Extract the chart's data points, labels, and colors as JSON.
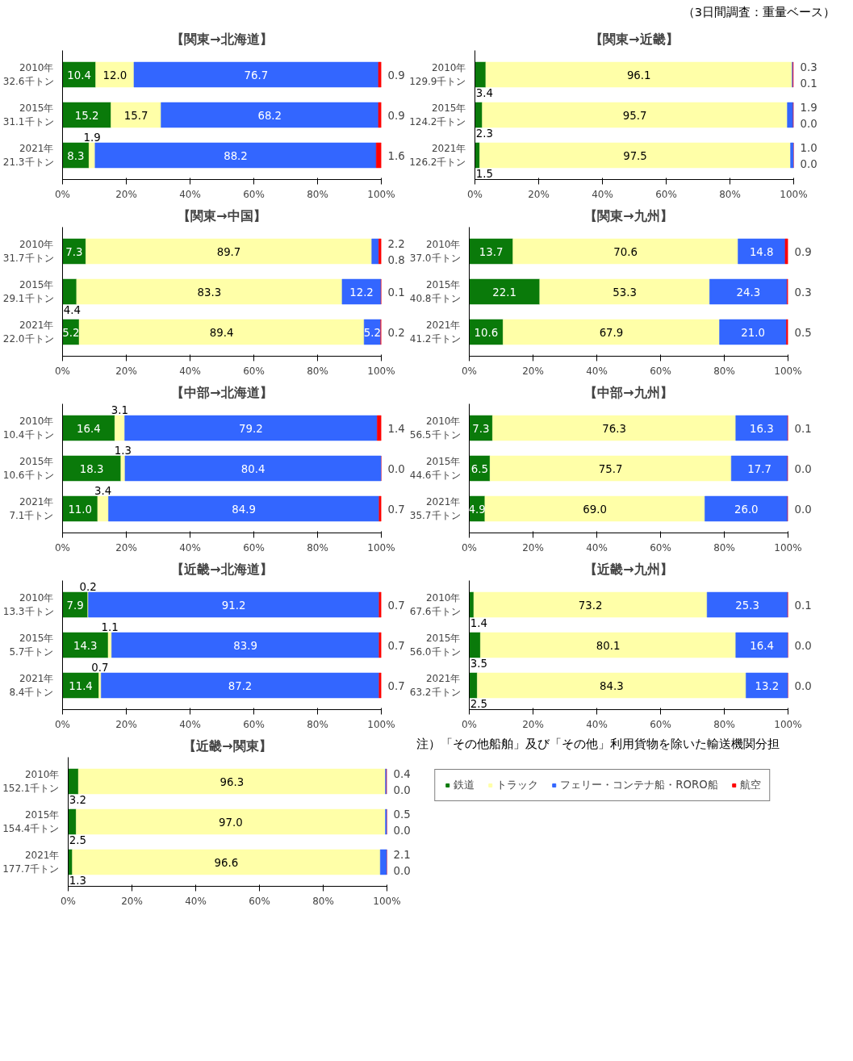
{
  "chart_data": [
    {
      "type": "bar",
      "orientation": "horizontal",
      "stacked": true,
      "title": "【関東→北海道】",
      "annotations": [
        "（3日間調査：重量ベース）"
      ],
      "categories": [
        "2010年\n32.6千トン",
        "2015年\n31.1千トン",
        "2021年\n21.3千トン"
      ],
      "xlim": [
        0,
        100
      ],
      "xticks": [
        {
          "value": 0,
          "label": "0%"
        },
        {
          "value": 20,
          "label": "20%"
        },
        {
          "value": 40,
          "label": "40%"
        },
        {
          "value": 60,
          "label": "60%"
        },
        {
          "value": 80,
          "label": "80%"
        },
        {
          "value": 100,
          "label": "100%"
        }
      ],
      "grid": false,
      "series": [
        {
          "color": "#0a7a0a",
          "values": [
            10.4,
            15.2,
            8.3
          ],
          "value_labels": [
            "10.4",
            "15.2",
            "8.3"
          ]
        },
        {
          "color": "#ffffa8",
          "values": [
            12.0,
            15.7,
            1.9
          ],
          "value_labels": [
            "12.0",
            "15.7",
            "1.9"
          ]
        },
        {
          "color": "#3366ff",
          "values": [
            76.7,
            68.2,
            88.2
          ],
          "value_labels": [
            "76.7",
            "68.2",
            "88.2"
          ]
        },
        {
          "color": "#ff0000",
          "values": [
            0.9,
            0.9,
            1.6
          ],
          "value_labels": [
            "0.9",
            "0.9",
            "1.6"
          ]
        }
      ]
    },
    {
      "type": "bar",
      "orientation": "horizontal",
      "stacked": true,
      "title": "【関東→近畿】",
      "categories": [
        "2010年\n129.9千トン",
        "2015年\n124.2千トン",
        "2021年\n126.2千トン"
      ],
      "xlim": [
        0,
        100
      ],
      "xticks": [
        {
          "value": 0,
          "label": "0%"
        },
        {
          "value": 20,
          "label": "20%"
        },
        {
          "value": 40,
          "label": "40%"
        },
        {
          "value": 60,
          "label": "60%"
        },
        {
          "value": 80,
          "label": "80%"
        },
        {
          "value": 100,
          "label": "100%"
        }
      ],
      "grid": false,
      "series": [
        {
          "color": "#0a7a0a",
          "values": [
            3.4,
            2.3,
            1.5
          ],
          "value_labels": [
            "3.4",
            "2.3",
            "1.5"
          ]
        },
        {
          "color": "#ffffa8",
          "values": [
            96.1,
            95.7,
            97.5
          ],
          "value_labels": [
            "96.1",
            "95.7",
            "97.5"
          ]
        },
        {
          "color": "#3366ff",
          "values": [
            0.3,
            1.9,
            1.0
          ],
          "value_labels": [
            "0.3",
            "1.9",
            "1.0"
          ]
        },
        {
          "color": "#ff0000",
          "values": [
            0.1,
            0.0,
            0.0
          ],
          "value_labels": [
            "0.1",
            "0.0",
            "0.0"
          ]
        }
      ]
    },
    {
      "type": "bar",
      "orientation": "horizontal",
      "stacked": true,
      "title": "【関東→中国】",
      "categories": [
        "2010年\n31.7千トン",
        "2015年\n29.1千トン",
        "2021年\n22.0千トン"
      ],
      "xlim": [
        0,
        100
      ],
      "xticks": [
        {
          "value": 0,
          "label": "0%"
        },
        {
          "value": 20,
          "label": "20%"
        },
        {
          "value": 40,
          "label": "40%"
        },
        {
          "value": 60,
          "label": "60%"
        },
        {
          "value": 80,
          "label": "80%"
        },
        {
          "value": 100,
          "label": "100%"
        }
      ],
      "grid": false,
      "series": [
        {
          "color": "#0a7a0a",
          "values": [
            7.3,
            4.4,
            5.2
          ],
          "value_labels": [
            "7.3",
            "4.4",
            "5.2"
          ]
        },
        {
          "color": "#ffffa8",
          "values": [
            89.7,
            83.3,
            89.4
          ],
          "value_labels": [
            "89.7",
            "83.3",
            "89.4"
          ]
        },
        {
          "color": "#3366ff",
          "values": [
            2.2,
            12.2,
            5.2
          ],
          "value_labels": [
            "2.2",
            "12.2",
            "5.2"
          ]
        },
        {
          "color": "#ff0000",
          "values": [
            0.8,
            0.1,
            0.2
          ],
          "value_labels": [
            "0.8",
            "0.1",
            "0.2"
          ]
        }
      ]
    },
    {
      "type": "bar",
      "orientation": "horizontal",
      "stacked": true,
      "title": "【関東→九州】",
      "categories": [
        "2010年\n37.0千トン",
        "2015年\n40.8千トン",
        "2021年\n41.2千トン"
      ],
      "xlim": [
        0,
        100
      ],
      "xticks": [
        {
          "value": 0,
          "label": "0%"
        },
        {
          "value": 20,
          "label": "20%"
        },
        {
          "value": 40,
          "label": "40%"
        },
        {
          "value": 60,
          "label": "60%"
        },
        {
          "value": 80,
          "label": "80%"
        },
        {
          "value": 100,
          "label": "100%"
        }
      ],
      "grid": false,
      "series": [
        {
          "color": "#0a7a0a",
          "values": [
            13.7,
            22.1,
            10.6
          ],
          "value_labels": [
            "13.7",
            "22.1",
            "10.6"
          ]
        },
        {
          "color": "#ffffa8",
          "values": [
            70.6,
            53.3,
            67.9
          ],
          "value_labels": [
            "70.6",
            "53.3",
            "67.9"
          ]
        },
        {
          "color": "#3366ff",
          "values": [
            14.8,
            24.3,
            21.0
          ],
          "value_labels": [
            "14.8",
            "24.3",
            "21.0"
          ]
        },
        {
          "color": "#ff0000",
          "values": [
            0.9,
            0.3,
            0.5
          ],
          "value_labels": [
            "0.9",
            "0.3",
            "0.5"
          ]
        }
      ]
    },
    {
      "type": "bar",
      "orientation": "horizontal",
      "stacked": true,
      "title": "【中部→北海道】",
      "categories": [
        "2010年\n10.4千トン",
        "2015年\n10.6千トン",
        "2021年\n7.1千トン"
      ],
      "xlim": [
        0,
        100
      ],
      "xticks": [
        {
          "value": 0,
          "label": "0%"
        },
        {
          "value": 20,
          "label": "20%"
        },
        {
          "value": 40,
          "label": "40%"
        },
        {
          "value": 60,
          "label": "60%"
        },
        {
          "value": 80,
          "label": "80%"
        },
        {
          "value": 100,
          "label": "100%"
        }
      ],
      "grid": false,
      "series": [
        {
          "color": "#0a7a0a",
          "values": [
            16.4,
            18.3,
            11.0
          ],
          "value_labels": [
            "16.4",
            "18.3",
            "11.0"
          ]
        },
        {
          "color": "#ffffa8",
          "values": [
            3.1,
            1.3,
            3.4
          ],
          "value_labels": [
            "3.1",
            "1.3",
            "3.4"
          ]
        },
        {
          "color": "#3366ff",
          "values": [
            79.2,
            80.4,
            84.9
          ],
          "value_labels": [
            "79.2",
            "80.4",
            "84.9"
          ]
        },
        {
          "color": "#ff0000",
          "values": [
            1.4,
            0.0,
            0.7
          ],
          "value_labels": [
            "1.4",
            "0.0",
            "0.7"
          ]
        }
      ]
    },
    {
      "type": "bar",
      "orientation": "horizontal",
      "stacked": true,
      "title": "【中部→九州】",
      "categories": [
        "2010年\n56.5千トン",
        "2015年\n44.6千トン",
        "2021年\n35.7千トン"
      ],
      "xlim": [
        0,
        100
      ],
      "xticks": [
        {
          "value": 0,
          "label": "0%"
        },
        {
          "value": 20,
          "label": "20%"
        },
        {
          "value": 40,
          "label": "40%"
        },
        {
          "value": 60,
          "label": "60%"
        },
        {
          "value": 80,
          "label": "80%"
        },
        {
          "value": 100,
          "label": "100%"
        }
      ],
      "grid": false,
      "series": [
        {
          "color": "#0a7a0a",
          "values": [
            7.3,
            6.5,
            4.9
          ],
          "value_labels": [
            "7.3",
            "6.5",
            "4.9"
          ]
        },
        {
          "color": "#ffffa8",
          "values": [
            76.3,
            75.7,
            69.0
          ],
          "value_labels": [
            "76.3",
            "75.7",
            "69.0"
          ]
        },
        {
          "color": "#3366ff",
          "values": [
            16.3,
            17.7,
            26.0
          ],
          "value_labels": [
            "16.3",
            "17.7",
            "26.0"
          ]
        },
        {
          "color": "#ff0000",
          "values": [
            0.1,
            0.0,
            0.0
          ],
          "value_labels": [
            "0.1",
            "0.0",
            "0.0"
          ]
        }
      ]
    },
    {
      "type": "bar",
      "orientation": "horizontal",
      "stacked": true,
      "title": "【近畿→北海道】",
      "categories": [
        "2010年\n13.3千トン",
        "2015年\n5.7千トン",
        "2021年\n8.4千トン"
      ],
      "xlim": [
        0,
        100
      ],
      "xticks": [
        {
          "value": 0,
          "label": "0%"
        },
        {
          "value": 20,
          "label": "20%"
        },
        {
          "value": 40,
          "label": "40%"
        },
        {
          "value": 60,
          "label": "60%"
        },
        {
          "value": 80,
          "label": "80%"
        },
        {
          "value": 100,
          "label": "100%"
        }
      ],
      "grid": false,
      "series": [
        {
          "color": "#0a7a0a",
          "values": [
            7.9,
            14.3,
            11.4
          ],
          "value_labels": [
            "7.9",
            "14.3",
            "11.4"
          ]
        },
        {
          "color": "#ffffa8",
          "values": [
            0.2,
            1.1,
            0.7
          ],
          "value_labels": [
            "0.2",
            "1.1",
            "0.7"
          ]
        },
        {
          "color": "#3366ff",
          "values": [
            91.2,
            83.9,
            87.2
          ],
          "value_labels": [
            "91.2",
            "83.9",
            "87.2"
          ]
        },
        {
          "color": "#ff0000",
          "values": [
            0.7,
            0.7,
            0.7
          ],
          "value_labels": [
            "0.7",
            "0.7",
            "0.7"
          ]
        }
      ]
    },
    {
      "type": "bar",
      "orientation": "horizontal",
      "stacked": true,
      "title": "【近畿→九州】",
      "categories": [
        "2010年\n67.6千トン",
        "2015年\n56.0千トン",
        "2021年\n63.2千トン"
      ],
      "xlim": [
        0,
        100
      ],
      "xticks": [
        {
          "value": 0,
          "label": "0%"
        },
        {
          "value": 20,
          "label": "20%"
        },
        {
          "value": 40,
          "label": "40%"
        },
        {
          "value": 60,
          "label": "60%"
        },
        {
          "value": 80,
          "label": "80%"
        },
        {
          "value": 100,
          "label": "100%"
        }
      ],
      "grid": false,
      "series": [
        {
          "color": "#0a7a0a",
          "values": [
            1.4,
            3.5,
            2.5
          ],
          "value_labels": [
            "1.4",
            "3.5",
            "2.5"
          ]
        },
        {
          "color": "#ffffa8",
          "values": [
            73.2,
            80.1,
            84.3
          ],
          "value_labels": [
            "73.2",
            "80.1",
            "84.3"
          ]
        },
        {
          "color": "#3366ff",
          "values": [
            25.3,
            16.4,
            13.2
          ],
          "value_labels": [
            "25.3",
            "16.4",
            "13.2"
          ]
        },
        {
          "color": "#ff0000",
          "values": [
            0.1,
            0.0,
            0.0
          ],
          "value_labels": [
            "0.1",
            "0.0",
            "0.0"
          ]
        }
      ]
    },
    {
      "type": "bar",
      "orientation": "horizontal",
      "stacked": true,
      "title": "【近畿→関東】",
      "annotations": [
        "注）「その他船舶」及び「その他」利用貨物を除いた輸送機関分担"
      ],
      "legend": "right",
      "categories": [
        "2010年\n152.1千トン",
        "2015年\n154.4千トン",
        "2021年\n177.7千トン"
      ],
      "xlim": [
        0,
        100
      ],
      "xticks": [
        {
          "value": 0,
          "label": "0%"
        },
        {
          "value": 20,
          "label": "20%"
        },
        {
          "value": 40,
          "label": "40%"
        },
        {
          "value": 60,
          "label": "60%"
        },
        {
          "value": 80,
          "label": "80%"
        },
        {
          "value": 100,
          "label": "100%"
        }
      ],
      "grid": false,
      "series": [
        {
          "name": "鉄道",
          "color": "#0a7a0a",
          "values": [
            3.2,
            2.5,
            1.3
          ],
          "value_labels": [
            "3.2",
            "2.5",
            "1.3"
          ]
        },
        {
          "name": "トラック",
          "color": "#ffffa8",
          "values": [
            96.3,
            97.0,
            96.6
          ],
          "value_labels": [
            "96.3",
            "97.0",
            "96.6"
          ]
        },
        {
          "name": "フェリー・コンテナ船・RORO船",
          "color": "#3366ff",
          "values": [
            0.4,
            0.5,
            2.1
          ],
          "value_labels": [
            "0.4",
            "0.5",
            "2.1"
          ]
        },
        {
          "name": "航空",
          "color": "#ff0000",
          "values": [
            0.0,
            0.0,
            0.0
          ],
          "value_labels": [
            "0.0",
            "0.0",
            "0.0"
          ]
        }
      ]
    }
  ]
}
